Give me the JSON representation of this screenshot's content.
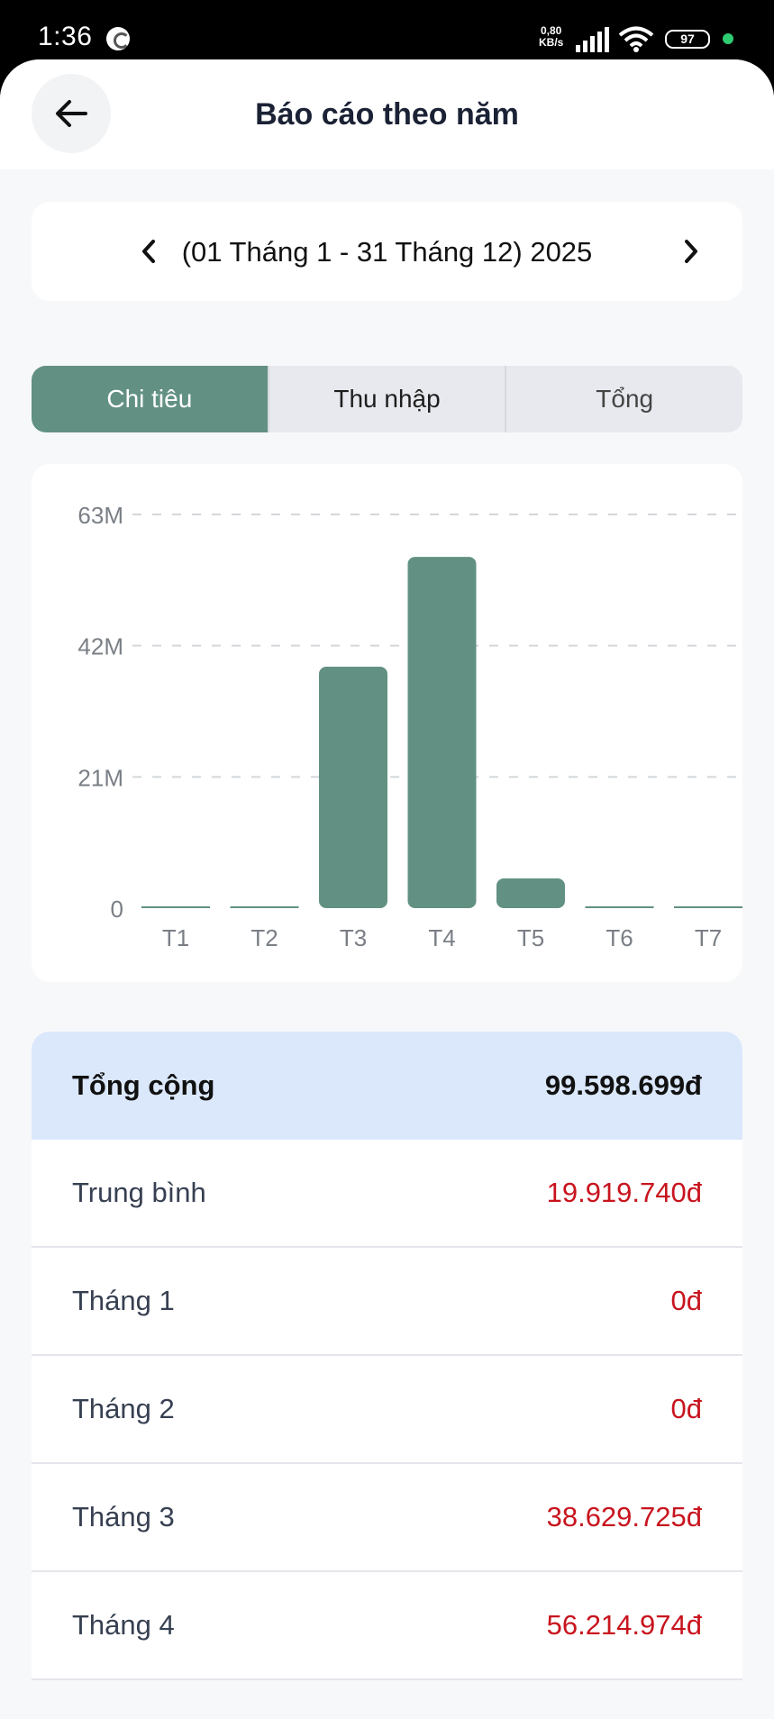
{
  "status_bar": {
    "time": "1:36",
    "net_speed_value": "0,80",
    "net_speed_unit": "KB/s",
    "battery": "97"
  },
  "header": {
    "title": "Báo cáo theo năm",
    "back_icon": "arrow-left-icon"
  },
  "date_range": {
    "label": "(01 Tháng 1 - 31 Tháng 12) 2025",
    "prev_icon": "chevron-left-icon",
    "next_icon": "chevron-right-icon"
  },
  "tabs": [
    {
      "label": "Chi tiêu",
      "active": true
    },
    {
      "label": "Thu nhập",
      "active": false
    },
    {
      "label": "Tổng",
      "active": false
    }
  ],
  "colors": {
    "accent": "#629183",
    "negative": "#c8141e",
    "total_bg": "#dbe8fb"
  },
  "chart_data": {
    "type": "bar",
    "categories": [
      "T1",
      "T2",
      "T3",
      "T4",
      "T5",
      "T6",
      "T7"
    ],
    "values": [
      0,
      0,
      38629725,
      56214974,
      4754000,
      0,
      0
    ],
    "ylim": [
      0,
      63000000
    ],
    "yticks": [
      0,
      21000000,
      42000000,
      63000000
    ],
    "ytick_labels": [
      "0",
      "21M",
      "42M",
      "63M"
    ],
    "grid": true,
    "bar_color": "#629183"
  },
  "summary": {
    "total": {
      "label": "Tổng cộng",
      "value": "99.598.699đ"
    },
    "average": {
      "label": "Trung bình",
      "value": "19.919.740đ"
    },
    "months": [
      {
        "label": "Tháng 1",
        "value": "0đ"
      },
      {
        "label": "Tháng 2",
        "value": "0đ"
      },
      {
        "label": "Tháng 3",
        "value": "38.629.725đ"
      },
      {
        "label": "Tháng 4",
        "value": "56.214.974đ"
      }
    ]
  }
}
